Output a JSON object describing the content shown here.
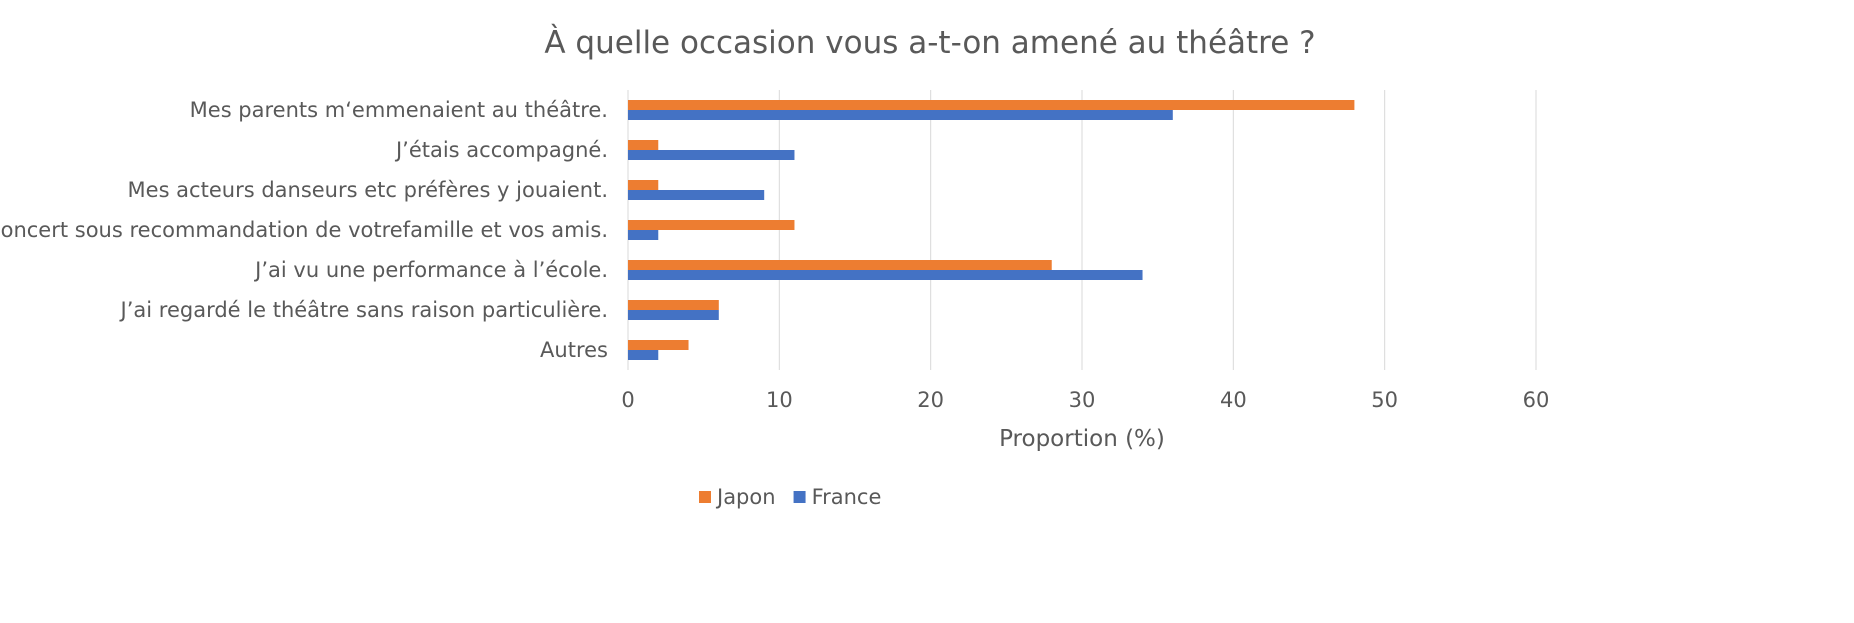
{
  "chart_data": {
    "type": "bar",
    "orientation": "horizontal",
    "title": "À quelle occasion vous a-t-on amené au théâtre ?",
    "xlabel": "Proportion (%)",
    "ylabel": "",
    "xlim": [
      0,
      60
    ],
    "x_ticks": [
      0,
      10,
      20,
      30,
      40,
      50,
      60
    ],
    "grid": true,
    "legend_position": "bottom",
    "categories": [
      "Mes parents m‘emmenaient au théâtre.",
      "J’étais accompagné.",
      "Mes acteurs danseurs etc préfères y jouaient.",
      "Le concert sous recommandation de votrefamille et vos amis.",
      "J’ai vu une performance à l’école.",
      "J’ai regardé le théâtre sans raison  particulière.",
      "Autres"
    ],
    "series": [
      {
        "name": "Japon",
        "color": "#ED7D31",
        "values": [
          48,
          2,
          2,
          11,
          28,
          6,
          4
        ]
      },
      {
        "name": "France",
        "color": "#4472C4",
        "values": [
          36,
          11,
          9,
          2,
          34,
          6,
          2
        ]
      }
    ],
    "gridline_color": "#d9d9d9",
    "text_color": "#595959"
  }
}
